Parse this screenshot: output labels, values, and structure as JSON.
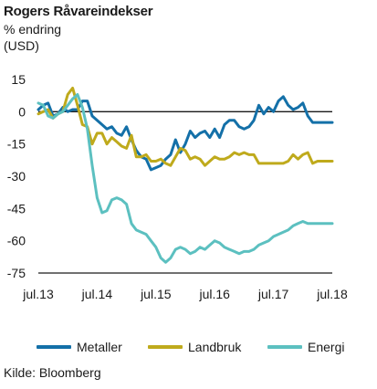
{
  "chart_data": {
    "type": "line",
    "title": "Rogers Råvareindekser",
    "subtitle_line1": "% endring",
    "subtitle_line2": "(USD)",
    "xlabel": "",
    "ylabel": "",
    "x_ticks": [
      "jul.13",
      "jul.14",
      "jul.15",
      "jul.16",
      "jul.17",
      "jul.18"
    ],
    "y_ticks": [
      15,
      0,
      -15,
      -30,
      -45,
      -60,
      -75
    ],
    "ylim": [
      -75,
      15
    ],
    "xlim": [
      0,
      60
    ],
    "zero_line": true,
    "grid": false,
    "legend_position": "bottom",
    "source": "Kilde: Bloomberg",
    "series": [
      {
        "name": "Metaller",
        "color": "#1470a8",
        "x": [
          0,
          1,
          2,
          3,
          4,
          5,
          6,
          7,
          8,
          9,
          10,
          11,
          12,
          13,
          14,
          15,
          16,
          17,
          18,
          19,
          20,
          21,
          22,
          23,
          24,
          25,
          26,
          27,
          28,
          29,
          30,
          31,
          32,
          33,
          34,
          35,
          36,
          37,
          38,
          39,
          40,
          41,
          42,
          43,
          44,
          45,
          46,
          47,
          48,
          49,
          50,
          51,
          52,
          53,
          54,
          55,
          56,
          57,
          58,
          59,
          60
        ],
        "values": [
          1,
          3,
          4,
          -2,
          -1,
          2,
          0,
          1,
          1,
          5,
          5,
          -2,
          -4,
          -6,
          -8,
          -7,
          -10,
          -11,
          -7,
          -13,
          -18,
          -21,
          -22,
          -27,
          -26,
          -25,
          -22,
          -20,
          -13,
          -19,
          -15,
          -9,
          -12,
          -10,
          -9,
          -12,
          -8,
          -12,
          -6,
          -4,
          -4,
          -7,
          -8,
          -7,
          -4,
          3,
          -1,
          2,
          0,
          5,
          7,
          3,
          1,
          2,
          4,
          -2,
          -5,
          -5,
          -5,
          -5,
          -5
        ]
      },
      {
        "name": "Landbruk",
        "color": "#bfaa1c",
        "x": [
          0,
          1,
          2,
          3,
          4,
          5,
          6,
          7,
          8,
          9,
          10,
          11,
          12,
          13,
          14,
          15,
          16,
          17,
          18,
          19,
          20,
          21,
          22,
          23,
          24,
          25,
          26,
          27,
          28,
          29,
          30,
          31,
          32,
          33,
          34,
          35,
          36,
          37,
          38,
          39,
          40,
          41,
          42,
          43,
          44,
          45,
          46,
          47,
          48,
          49,
          50,
          51,
          52,
          53,
          54,
          55,
          56,
          57,
          58,
          59,
          60
        ],
        "values": [
          -1,
          0,
          1,
          -3,
          -1,
          0,
          8,
          11,
          3,
          -6,
          -7,
          -15,
          -10,
          -10,
          -15,
          -12,
          -14,
          -16,
          -17,
          -11,
          -21,
          -21,
          -20,
          -23,
          -23,
          -22,
          -24,
          -25,
          -21,
          -17,
          -18,
          -22,
          -21,
          -22,
          -25,
          -23,
          -21,
          -22,
          -22,
          -21,
          -19,
          -20,
          -19,
          -20,
          -20,
          -24,
          -24,
          -24,
          -24,
          -24,
          -24,
          -23,
          -20,
          -22,
          -20,
          -19,
          -24,
          -23,
          -23,
          -23,
          -23
        ]
      },
      {
        "name": "Energi",
        "color": "#5cc0c0",
        "x": [
          0,
          1,
          2,
          3,
          4,
          5,
          6,
          7,
          8,
          9,
          10,
          11,
          12,
          13,
          14,
          15,
          16,
          17,
          18,
          19,
          20,
          21,
          22,
          23,
          24,
          25,
          26,
          27,
          28,
          29,
          30,
          31,
          32,
          33,
          34,
          35,
          36,
          37,
          38,
          39,
          40,
          41,
          42,
          43,
          44,
          45,
          46,
          47,
          48,
          49,
          50,
          51,
          52,
          53,
          54,
          55,
          56,
          57,
          58,
          59,
          60
        ],
        "values": [
          4,
          3,
          -2,
          -3,
          -1,
          0,
          3,
          6,
          8,
          2,
          -8,
          -25,
          -40,
          -47,
          -46,
          -41,
          -40,
          -41,
          -43,
          -52,
          -55,
          -56,
          -57,
          -60,
          -63,
          -68,
          -70,
          -68,
          -64,
          -63,
          -64,
          -66,
          -65,
          -63,
          -64,
          -62,
          -60,
          -61,
          -63,
          -64,
          -65,
          -66,
          -65,
          -65,
          -64,
          -62,
          -61,
          -60,
          -58,
          -57,
          -56,
          -55,
          -53,
          -52,
          -51,
          -52,
          -52,
          -52,
          -52,
          -52,
          -52
        ]
      }
    ]
  }
}
